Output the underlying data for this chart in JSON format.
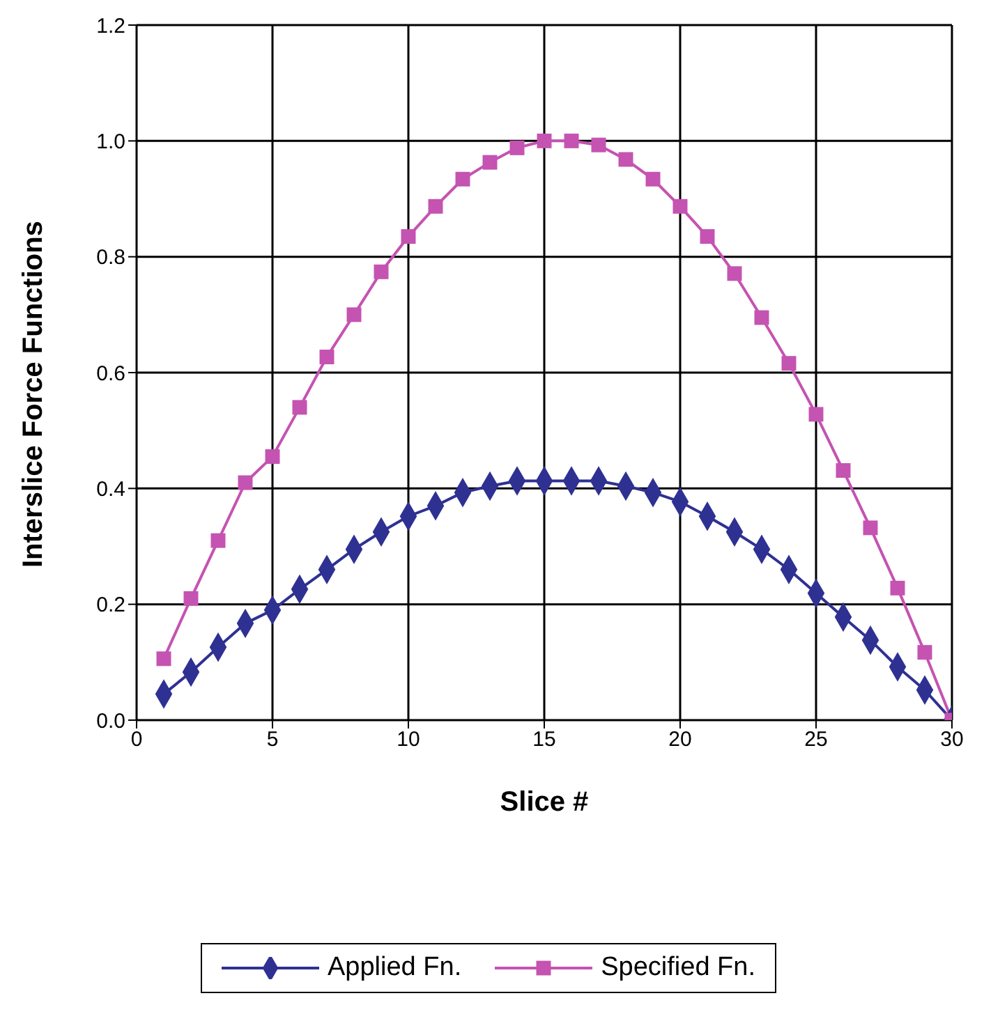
{
  "chart_data": {
    "type": "line",
    "xlabel": "Slice #",
    "ylabel": "Interslice Force Functions",
    "x": [
      1,
      2,
      3,
      4,
      5,
      6,
      7,
      8,
      9,
      10,
      11,
      12,
      13,
      14,
      15,
      16,
      17,
      18,
      19,
      20,
      21,
      22,
      23,
      24,
      25,
      26,
      27,
      28,
      29,
      30
    ],
    "series": [
      {
        "name": "Applied Fn.",
        "color": "#2e3192",
        "marker": "diamond",
        "values": [
          0.045,
          0.083,
          0.126,
          0.167,
          0.19,
          0.226,
          0.26,
          0.295,
          0.325,
          0.352,
          0.37,
          0.393,
          0.404,
          0.413,
          0.413,
          0.413,
          0.413,
          0.404,
          0.393,
          0.377,
          0.352,
          0.325,
          0.295,
          0.26,
          0.219,
          0.178,
          0.138,
          0.092,
          0.052,
          0
        ]
      },
      {
        "name": "Specified Fn.",
        "color": "#c553b1",
        "marker": "square",
        "values": [
          0.106,
          0.21,
          0.31,
          0.41,
          0.455,
          0.54,
          0.627,
          0.7,
          0.774,
          0.835,
          0.887,
          0.934,
          0.963,
          0.988,
          1.0,
          1.0,
          0.993,
          0.968,
          0.934,
          0.887,
          0.835,
          0.771,
          0.695,
          0.616,
          0.528,
          0.431,
          0.332,
          0.228,
          0.117,
          0
        ]
      }
    ],
    "xlim": [
      0,
      30
    ],
    "xticks": [
      0,
      5,
      10,
      15,
      20,
      25,
      30
    ],
    "ylim": [
      0,
      1.2
    ],
    "yticks": [
      {
        "value": 0,
        "label": "0.0"
      },
      {
        "value": 0.2,
        "label": "0.2"
      },
      {
        "value": 0.4,
        "label": "0.4"
      },
      {
        "value": 0.6,
        "label": "0.6"
      },
      {
        "value": 0.8,
        "label": "0.8"
      },
      {
        "value": 1.0,
        "label": "1.0"
      },
      {
        "value": 1.2,
        "label": "1.2"
      }
    ],
    "grid": true,
    "legend": "bottom",
    "line_style": "solid"
  }
}
